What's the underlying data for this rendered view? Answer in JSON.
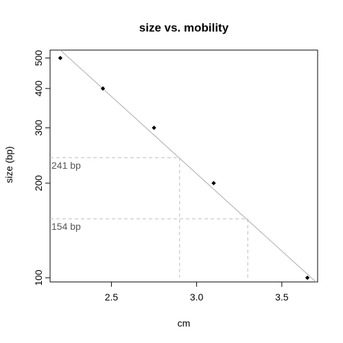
{
  "chart_data": {
    "type": "scatter",
    "title": "size vs. mobility",
    "xlabel": "cm",
    "ylabel": "size (bp)",
    "x_scale": "linear",
    "y_scale": "log",
    "xlim": [
      2.14,
      3.71
    ],
    "ylim": [
      97,
      530
    ],
    "x_ticks": [
      2.5,
      3.0,
      3.5
    ],
    "x_tick_labels": [
      "2.5",
      "3.0",
      "3.5"
    ],
    "y_ticks": [
      100,
      200,
      300,
      400,
      500
    ],
    "y_tick_labels": [
      "100",
      "200",
      "300",
      "400",
      "500"
    ],
    "grid": false,
    "points": [
      {
        "x": 2.2,
        "y": 500
      },
      {
        "x": 2.45,
        "y": 400
      },
      {
        "x": 2.75,
        "y": 300
      },
      {
        "x": 3.1,
        "y": 200
      },
      {
        "x": 3.65,
        "y": 100
      }
    ],
    "fit_line": {
      "x": [
        2.2,
        3.7
      ],
      "y": [
        530,
        97
      ]
    },
    "annotations": [
      {
        "label": "241 bp",
        "x": 2.9,
        "y": 241
      },
      {
        "label": "154 bp",
        "x": 3.3,
        "y": 154
      }
    ]
  }
}
